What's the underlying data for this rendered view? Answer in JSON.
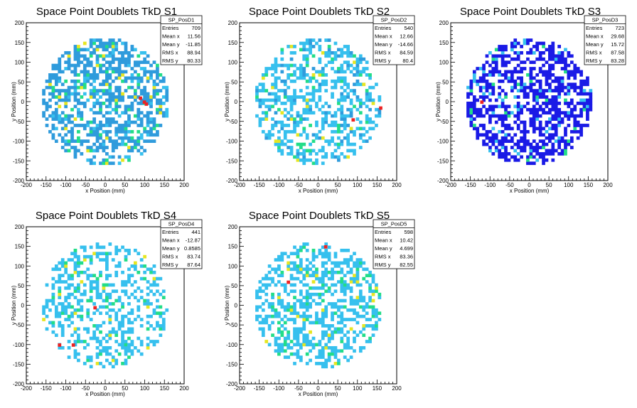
{
  "chart_data": [
    {
      "type": "heatmap",
      "title": "Space Point Doublets TkD S1",
      "xlabel": "x Position (mm)",
      "ylabel": "y Position (mm)",
      "xlim": [
        -200,
        200
      ],
      "ylim": [
        -200,
        200
      ],
      "xticks": [
        "-200",
        "-150",
        "-100",
        "-50",
        "0",
        "50",
        "100",
        "150",
        "200"
      ],
      "yticks": [
        "-200",
        "-150",
        "-100",
        "-50",
        "0",
        "50",
        "100",
        "150",
        "200"
      ],
      "stats": {
        "name": "SP_PosD1",
        "rows": [
          [
            "Entries",
            "709"
          ],
          [
            "Mean x",
            "11.56"
          ],
          [
            "Mean y",
            "-11.85"
          ],
          [
            "RMS x",
            "88.94"
          ],
          [
            "RMS y",
            "80.33"
          ]
        ]
      },
      "palette": [
        "#2f9bdc",
        "#36c0ee",
        "#22dd88",
        "#e6e622",
        "#ee2222"
      ],
      "occupancy": 0.55,
      "seed": 11,
      "hot": [
        [
          95,
          -5
        ],
        [
          85,
          5
        ],
        [
          100,
          -10
        ]
      ]
    },
    {
      "type": "heatmap",
      "title": "Space Point Doublets TkD S2",
      "xlabel": "x Position (mm)",
      "ylabel": "y Position (mm)",
      "xlim": [
        -200,
        200
      ],
      "ylim": [
        -200,
        200
      ],
      "xticks": [
        "-200",
        "-150",
        "-100",
        "-50",
        "0",
        "50",
        "100",
        "150",
        "200"
      ],
      "yticks": [
        "-200",
        "-150",
        "-100",
        "-50",
        "0",
        "50",
        "100",
        "150",
        "200"
      ],
      "stats": {
        "name": "SP_PosD2",
        "rows": [
          [
            "Entries",
            "540"
          ],
          [
            "Mean x",
            "12.66"
          ],
          [
            "Mean y",
            "-14.66"
          ],
          [
            "RMS x",
            "84.59"
          ],
          [
            "RMS y",
            "80.4"
          ]
        ]
      },
      "palette": [
        "#36c0ee",
        "#2f9bdc",
        "#22dd88",
        "#e6e622",
        "#ee2222"
      ],
      "occupancy": 0.45,
      "seed": 23,
      "hot": [
        [
          155,
          -20
        ],
        [
          85,
          -50
        ]
      ]
    },
    {
      "type": "heatmap",
      "title": "Space Point Doublets TkD S3",
      "xlabel": "x Position (mm)",
      "ylabel": "y Position (mm)",
      "xlim": [
        -200,
        200
      ],
      "ylim": [
        -200,
        200
      ],
      "xticks": [
        "-200",
        "-150",
        "-100",
        "-50",
        "0",
        "50",
        "100",
        "150",
        "200"
      ],
      "yticks": [
        "-200",
        "-150",
        "-100",
        "-50",
        "0",
        "50",
        "100",
        "150",
        "200"
      ],
      "stats": {
        "name": "SP_PosD3",
        "rows": [
          [
            "Entries",
            "723"
          ],
          [
            "Mean x",
            "29.68"
          ],
          [
            "Mean y",
            "15.72"
          ],
          [
            "RMS x",
            "87.58"
          ],
          [
            "RMS y",
            "83.28"
          ]
        ]
      },
      "palette": [
        "#1a1ae6",
        "#1a1ae6",
        "#36c0ee",
        "#22dd88",
        "#ee2222"
      ],
      "occupancy": 0.55,
      "seed": 37,
      "hot": [
        [
          -125,
          -5
        ]
      ]
    },
    {
      "type": "heatmap",
      "title": "Space Point Doublets TkD S4",
      "xlabel": "x Position (mm)",
      "ylabel": "y Position (mm)",
      "xlim": [
        -200,
        200
      ],
      "ylim": [
        -200,
        200
      ],
      "xticks": [
        "-200",
        "-150",
        "-100",
        "-50",
        "0",
        "50",
        "100",
        "150",
        "200"
      ],
      "yticks": [
        "-200",
        "-150",
        "-100",
        "-50",
        "0",
        "50",
        "100",
        "150",
        "200"
      ],
      "stats": {
        "name": "SP_PosD4",
        "rows": [
          [
            "Entries",
            "441"
          ],
          [
            "Mean x",
            "-12.87"
          ],
          [
            "Mean y",
            "0.8585"
          ],
          [
            "RMS x",
            "83.74"
          ],
          [
            "RMS y",
            "87.64"
          ]
        ]
      },
      "palette": [
        "#36c0ee",
        "#36c0ee",
        "#22dd88",
        "#e6e622",
        "#ee2222"
      ],
      "occupancy": 0.38,
      "seed": 41,
      "hot": [
        [
          -120,
          -105
        ],
        [
          -30,
          -10
        ],
        [
          -85,
          -105
        ]
      ]
    },
    {
      "type": "heatmap",
      "title": "Space Point Doublets TkD S5",
      "xlabel": "x Position (mm)",
      "ylabel": "y Position (mm)",
      "xlim": [
        -200,
        200
      ],
      "ylim": [
        -200,
        200
      ],
      "xticks": [
        "-200",
        "-150",
        "-100",
        "-50",
        "0",
        "50",
        "100",
        "150",
        "200"
      ],
      "yticks": [
        "-200",
        "-150",
        "-100",
        "-50",
        "0",
        "50",
        "100",
        "150",
        "200"
      ],
      "stats": {
        "name": "SP_PosD5",
        "rows": [
          [
            "Entries",
            "598"
          ],
          [
            "Mean x",
            "10.42"
          ],
          [
            "Mean y",
            "4.699"
          ],
          [
            "RMS x",
            "83.36"
          ],
          [
            "RMS y",
            "82.55"
          ]
        ]
      },
      "palette": [
        "#36c0ee",
        "#36c0ee",
        "#22dd88",
        "#e6e622",
        "#ee2222"
      ],
      "occupancy": 0.45,
      "seed": 53,
      "hot": [
        [
          -80,
          55
        ],
        [
          15,
          145
        ]
      ]
    }
  ]
}
